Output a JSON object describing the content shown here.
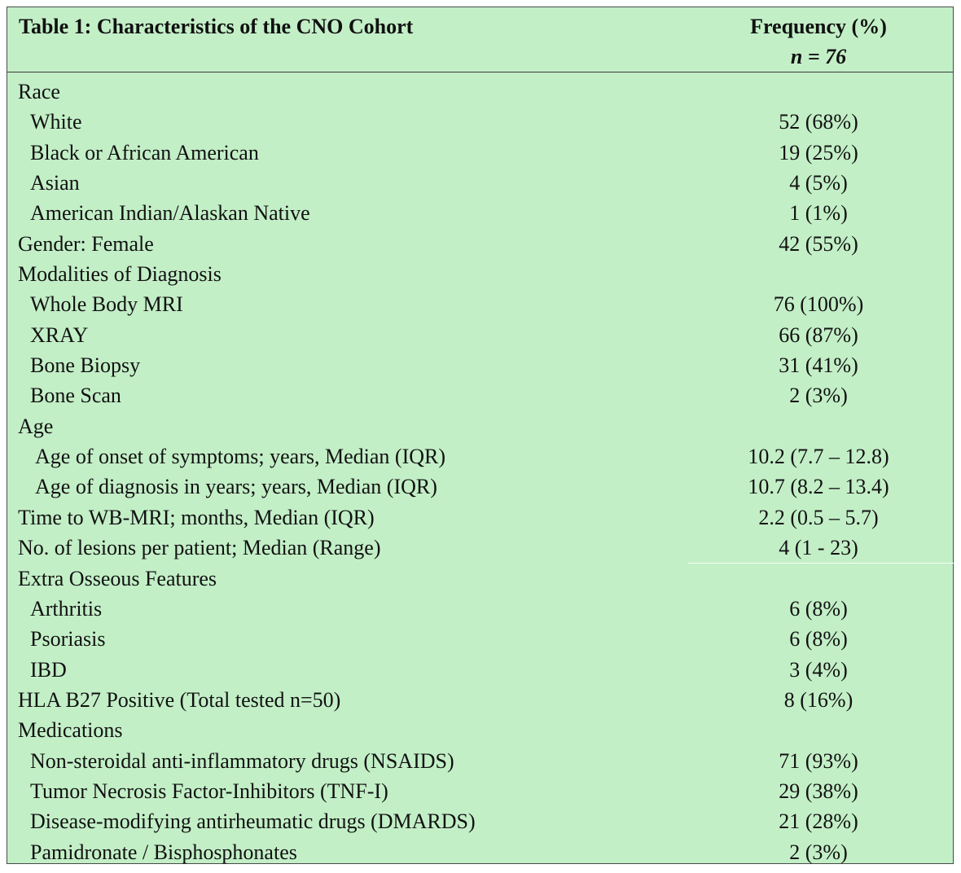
{
  "table": {
    "caption": "Table 1: Characteristics of the CNO Cohort",
    "column_header": "Frequency (%)",
    "column_subheader": "n = 76",
    "rows": [
      {
        "label": "Race",
        "value": "",
        "indent": 0
      },
      {
        "label": "White",
        "value": "52 (68%)",
        "indent": 1
      },
      {
        "label": "Black or African American",
        "value": "19 (25%)",
        "indent": 1
      },
      {
        "label": "Asian",
        "value": "4 (5%)",
        "indent": 1
      },
      {
        "label": "American Indian/Alaskan Native",
        "value": "1 (1%)",
        "indent": 1
      },
      {
        "label": "Gender: Female",
        "value": "42 (55%)",
        "indent": 0
      },
      {
        "label": "Modalities of Diagnosis",
        "value": "",
        "indent": 0
      },
      {
        "label": "Whole Body MRI",
        "value": "76 (100%)",
        "indent": 1
      },
      {
        "label": "XRAY",
        "value": "66 (87%)",
        "indent": 1
      },
      {
        "label": "Bone Biopsy",
        "value": "31 (41%)",
        "indent": 1
      },
      {
        "label": "Bone Scan",
        "value": "2 (3%)",
        "indent": 1
      },
      {
        "label": "Age",
        "value": "",
        "indent": 0
      },
      {
        "label": "Age of onset of symptoms; years, Median (IQR)",
        "value": "10.2 (7.7 – 12.8)",
        "indent": 2
      },
      {
        "label": "Age of diagnosis in years; years, Median (IQR)",
        "value": "10.7 (8.2 – 13.4)",
        "indent": 2
      },
      {
        "label": "Time to WB-MRI; months, Median (IQR)",
        "value": "2.2 (0.5 – 5.7)",
        "indent": 0
      },
      {
        "label": "No. of lesions per patient; Median (Range)",
        "value": "4 (1 - 23)",
        "indent": 0
      },
      {
        "label": "Extra Osseous Features",
        "value": "",
        "indent": 0
      },
      {
        "label": "Arthritis",
        "value": "6 (8%)",
        "indent": 1
      },
      {
        "label": "Psoriasis",
        "value": "6 (8%)",
        "indent": 1
      },
      {
        "label": "IBD",
        "value": "3 (4%)",
        "indent": 1
      },
      {
        "label": "HLA B27 Positive (Total tested n=50)",
        "value": "8 (16%)",
        "indent": 0
      },
      {
        "label": "Medications",
        "value": "",
        "indent": 0
      },
      {
        "label": "Non-steroidal anti-inflammatory drugs (NSAIDS)",
        "value": "71 (93%)",
        "indent": 1
      },
      {
        "label": "Tumor Necrosis Factor-Inhibitors (TNF-I)",
        "value": "29 (38%)",
        "indent": 1
      },
      {
        "label": "Disease-modifying antirheumatic drugs (DMARDS)",
        "value": "21 (28%)",
        "indent": 1
      },
      {
        "label": "Pamidronate / Bisphosphonates",
        "value": "2 (3%)",
        "indent": 1
      }
    ]
  },
  "colors": {
    "table_background": "#c3efc7",
    "border": "#4a4a4a",
    "text": "#111111"
  }
}
